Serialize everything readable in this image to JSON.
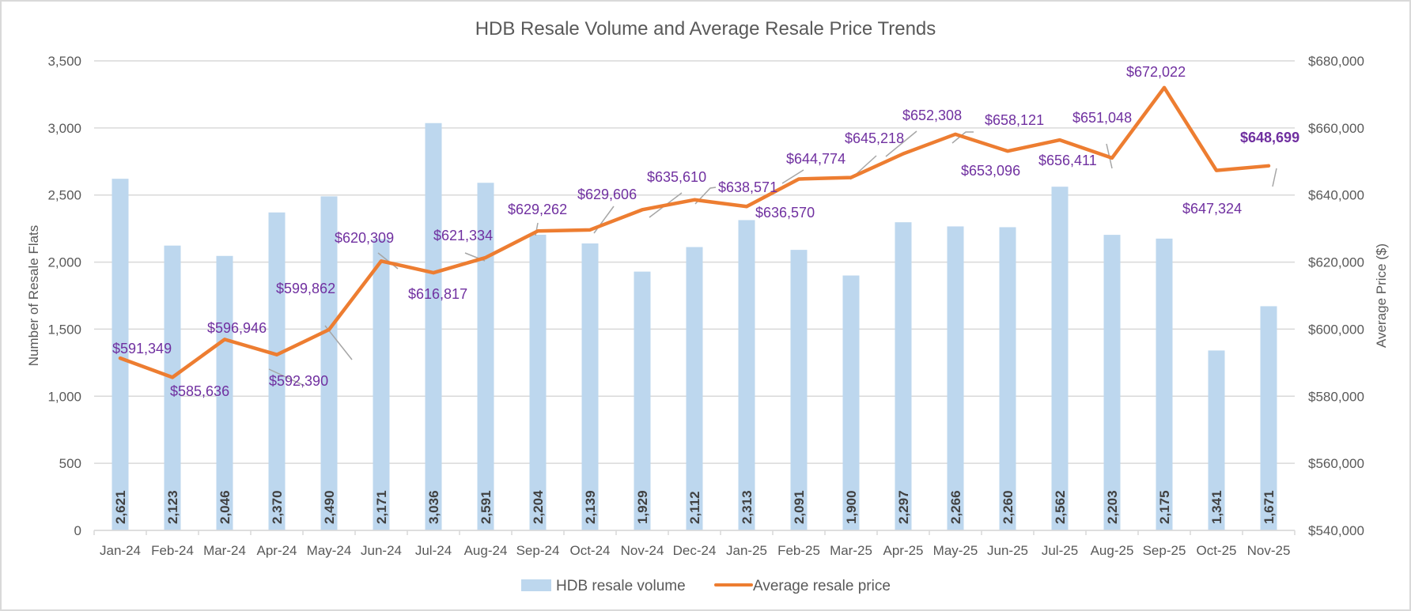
{
  "chart_data": {
    "type": "bar+line",
    "title": "HDB Resale Volume and Average Resale Price Trends",
    "categories": [
      "Jan-24",
      "Feb-24",
      "Mar-24",
      "Apr-24",
      "May-24",
      "Jun-24",
      "Jul-24",
      "Aug-24",
      "Sep-24",
      "Oct-24",
      "Nov-24",
      "Dec-24",
      "Jan-25",
      "Feb-25",
      "Mar-25",
      "Apr-25",
      "May-25",
      "Jun-25",
      "Jul-25",
      "Aug-25",
      "Sep-25",
      "Oct-25",
      "Nov-25"
    ],
    "series": [
      {
        "name": "HDB resale volume",
        "type": "bar",
        "axis": "left",
        "color": "#bdd7ee",
        "values": [
          2621,
          2123,
          2046,
          2370,
          2490,
          2171,
          3036,
          2591,
          2204,
          2139,
          1929,
          2112,
          2313,
          2091,
          1900,
          2297,
          2266,
          2260,
          2562,
          2203,
          2175,
          1341,
          1671
        ],
        "labels": [
          "2,621",
          "2,123",
          "2,046",
          "2,370",
          "2,490",
          "2,171",
          "3,036",
          "2,591",
          "2,204",
          "2,139",
          "1,929",
          "2,112",
          "2,313",
          "2,091",
          "1,900",
          "2,297",
          "2,266",
          "2,260",
          "2,562",
          "2,203",
          "2,175",
          "1,341",
          "1,671"
        ]
      },
      {
        "name": "Average resale price",
        "type": "line",
        "axis": "right",
        "color": "#ed7d31",
        "values": [
          591349,
          585636,
          596946,
          592390,
          599862,
          620309,
          616817,
          621334,
          629262,
          629606,
          635610,
          638571,
          636570,
          644774,
          645218,
          652308,
          658121,
          653096,
          656411,
          651048,
          672022,
          647324,
          648699
        ],
        "labels": [
          "$591,349",
          "$585,636",
          "$596,946",
          "$592,390",
          "$599,862",
          "$620,309",
          "$616,817",
          "$621,334",
          "$629,262",
          "$629,606",
          "$635,610",
          "$638,571",
          "$636,570",
          "$644,774",
          "$645,218",
          "$652,308",
          "$658,121",
          "$653,096",
          "$656,411",
          "$651,048",
          "$672,022",
          "$647,324",
          "$648,699"
        ]
      }
    ],
    "left_axis": {
      "label": "Number of Resale Flats",
      "ylim": [
        0,
        3500
      ],
      "ticks": [
        0,
        500,
        1000,
        1500,
        2000,
        2500,
        3000,
        3500
      ],
      "tick_labels": [
        "0",
        "500",
        "1,000",
        "1,500",
        "2,000",
        "2,500",
        "3,000",
        "3,500"
      ]
    },
    "right_axis": {
      "label": "Average Price ($)",
      "ylim": [
        540000,
        680000
      ],
      "ticks": [
        540000,
        560000,
        580000,
        600000,
        620000,
        640000,
        660000,
        680000
      ],
      "tick_labels": [
        "$540,000",
        "$560,000",
        "$580,000",
        "$600,000",
        "$620,000",
        "$640,000",
        "$660,000",
        "$680,000"
      ]
    },
    "grid": true,
    "legend": {
      "position": "bottom",
      "entries": [
        "HDB resale volume",
        "Average resale price"
      ]
    },
    "label_color": "#7030a0"
  }
}
